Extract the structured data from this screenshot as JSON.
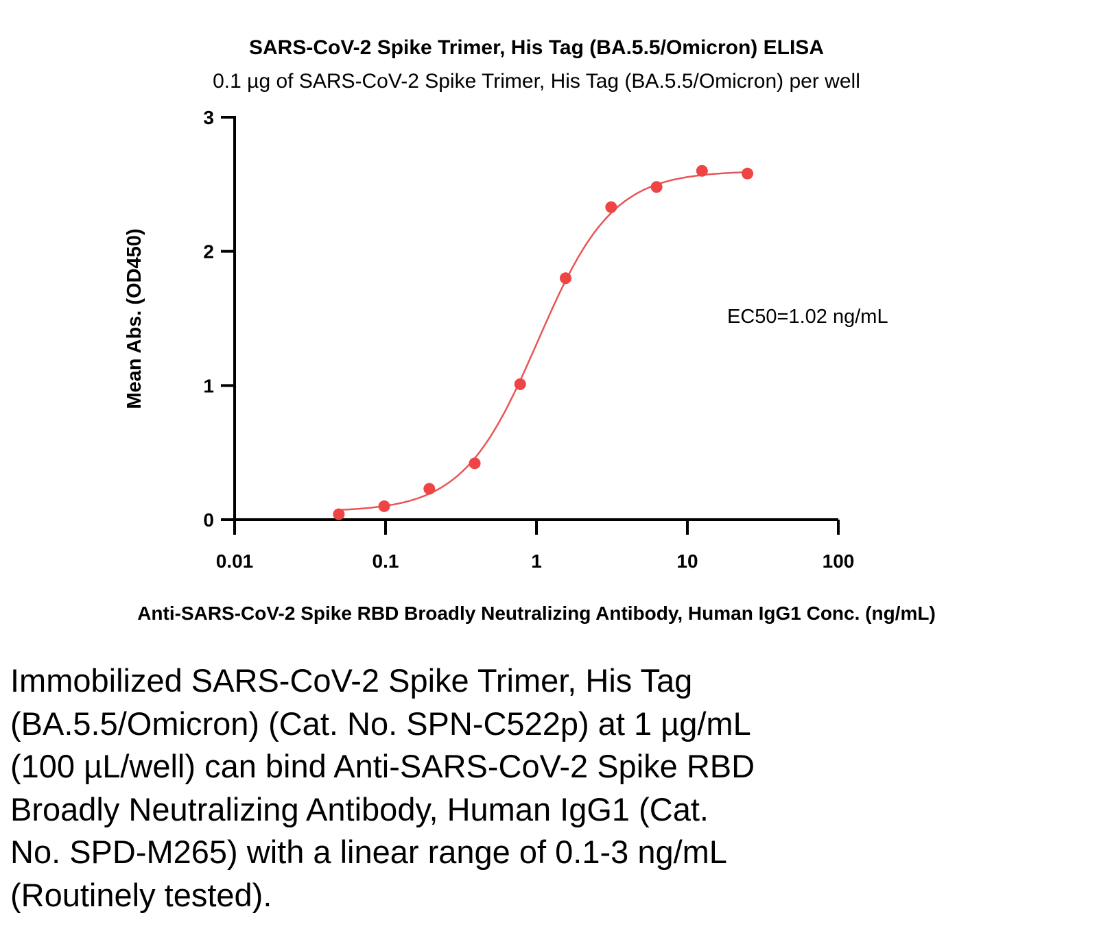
{
  "chart_data": {
    "type": "scatter",
    "title": "SARS-CoV-2 Spike Trimer, His Tag (BA.5.5/Omicron) ELISA",
    "subtitle": "0.1 µg of SARS-CoV-2 Spike Trimer, His Tag (BA.5.5/Omicron) per well",
    "xlabel": "Anti-SARS-CoV-2 Spike RBD Broadly Neutralizing Antibody, Human IgG1 Conc. (ng/mL)",
    "ylabel": "Mean Abs. (OD450)",
    "xscale": "log",
    "xlim": [
      0.01,
      100
    ],
    "ylim": [
      0,
      3
    ],
    "xticks": [
      "0.01",
      "0.1",
      "1",
      "10",
      "100"
    ],
    "xtick_values": [
      0.01,
      0.1,
      1,
      10,
      100
    ],
    "yticks": [
      "0",
      "1",
      "2",
      "3"
    ],
    "ytick_values": [
      0,
      1,
      2,
      3
    ],
    "grid": false,
    "series": [
      {
        "name": "Anti-SARS-CoV-2 Spike RBD Broadly Neutralizing Antibody",
        "x": [
          0.049,
          0.098,
          0.195,
          0.39,
          0.78,
          1.56,
          3.125,
          6.25,
          12.5,
          25
        ],
        "y": [
          0.04,
          0.1,
          0.23,
          0.42,
          1.01,
          1.8,
          2.33,
          2.48,
          2.6,
          2.58
        ],
        "color": "#ee4444",
        "fit": {
          "model": "4PL",
          "bottom": 0.06,
          "top": 2.6,
          "ec50": 1.02,
          "hill": 1.75
        }
      }
    ],
    "annotations": [
      "EC50=1.02 ng/mL"
    ]
  },
  "description_lines": [
    "Immobilized SARS-CoV-2 Spike Trimer, His Tag",
    "(BA.5.5/Omicron) (Cat. No. SPN-C522p) at 1 µg/mL",
    "(100 µL/well) can bind Anti-SARS-CoV-2 Spike RBD",
    "Broadly Neutralizing Antibody, Human IgG1 (Cat.",
    "No. SPD-M265) with a linear range of 0.1-3 ng/mL",
    "(Routinely tested)."
  ]
}
